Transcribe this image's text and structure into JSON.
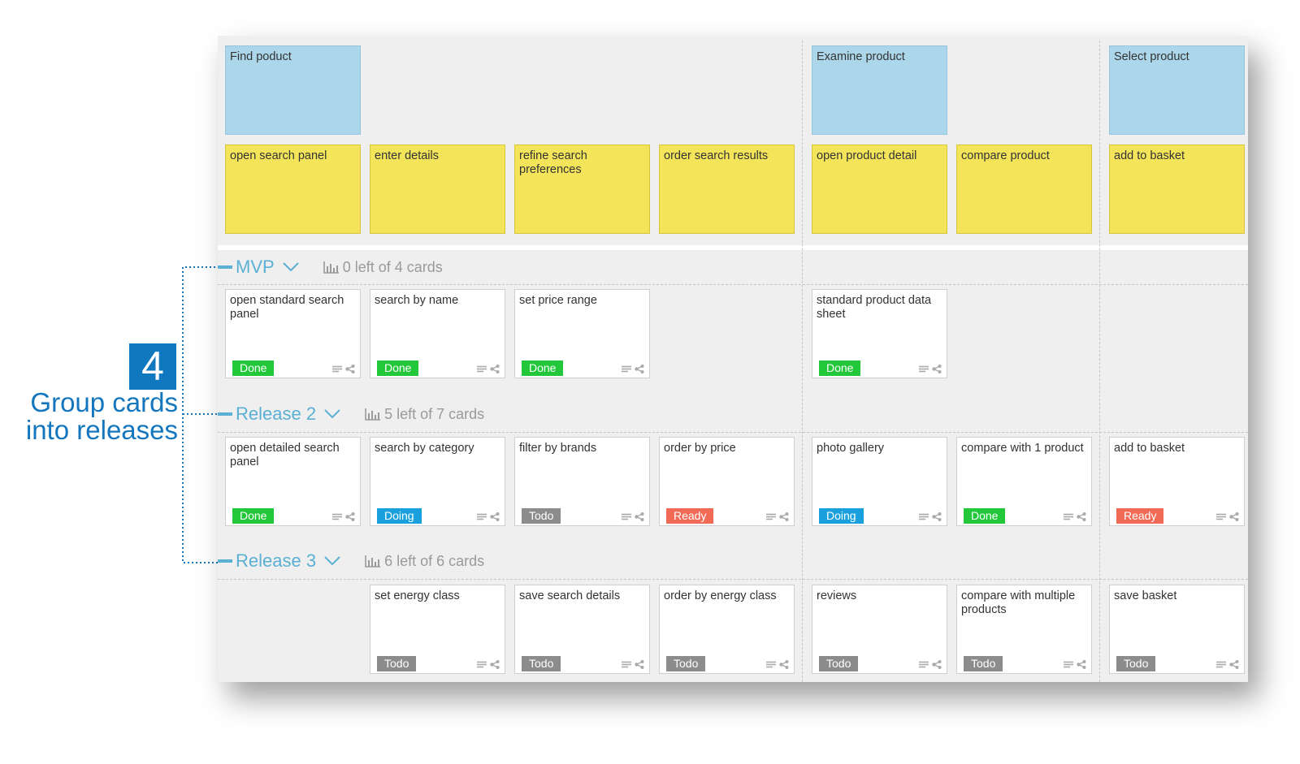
{
  "colors": {
    "activity": "#acd7ea",
    "task": "#f3e45a",
    "story": "#ffffff",
    "accent": "#5ab0d4",
    "callout": "#0f78bf",
    "status": {
      "Done": "#22c73a",
      "Doing": "#1aa0dc",
      "Todo": "#8c8c8c",
      "Ready": "#f06a55"
    }
  },
  "callout": {
    "number": "4",
    "line1": "Group cards",
    "line2": "into releases"
  },
  "activities": [
    {
      "label": "Find poduct"
    },
    {
      "label": "Examine product"
    },
    {
      "label": "Select product"
    }
  ],
  "tasks": [
    {
      "label": "open search panel"
    },
    {
      "label": "enter details"
    },
    {
      "label": "refine search preferences"
    },
    {
      "label": "order search results"
    },
    {
      "label": "open product detail"
    },
    {
      "label": "compare product"
    },
    {
      "label": "add to basket"
    }
  ],
  "releases": [
    {
      "name": "MVP",
      "stats": "0 left of 4 cards",
      "cards": [
        {
          "column": 0,
          "title": "open standard search panel",
          "status": "Done"
        },
        {
          "column": 1,
          "title": "search by name",
          "status": "Done"
        },
        {
          "column": 2,
          "title": "set price range",
          "status": "Done"
        },
        {
          "column": 4,
          "title": "standard product data sheet",
          "status": "Done"
        }
      ]
    },
    {
      "name": "Release 2",
      "stats": "5 left of 7 cards",
      "cards": [
        {
          "column": 0,
          "title": "open detailed search panel",
          "status": "Done"
        },
        {
          "column": 1,
          "title": "search by category",
          "status": "Doing"
        },
        {
          "column": 2,
          "title": "filter by brands",
          "status": "Todo"
        },
        {
          "column": 3,
          "title": "order by price",
          "status": "Ready"
        },
        {
          "column": 4,
          "title": "photo gallery",
          "status": "Doing"
        },
        {
          "column": 5,
          "title": "compare with 1 product",
          "status": "Done"
        },
        {
          "column": 6,
          "title": "add to basket",
          "status": "Ready"
        }
      ]
    },
    {
      "name": "Release 3",
      "stats": "6 left of 6 cards",
      "cards": [
        {
          "column": 1,
          "title": "set energy class",
          "status": "Todo"
        },
        {
          "column": 2,
          "title": "save search details",
          "status": "Todo"
        },
        {
          "column": 3,
          "title": "order by energy class",
          "status": "Todo"
        },
        {
          "column": 4,
          "title": "reviews",
          "status": "Todo"
        },
        {
          "column": 5,
          "title": "compare with multiple products",
          "status": "Todo"
        },
        {
          "column": 6,
          "title": "save basket",
          "status": "Todo"
        }
      ]
    }
  ]
}
